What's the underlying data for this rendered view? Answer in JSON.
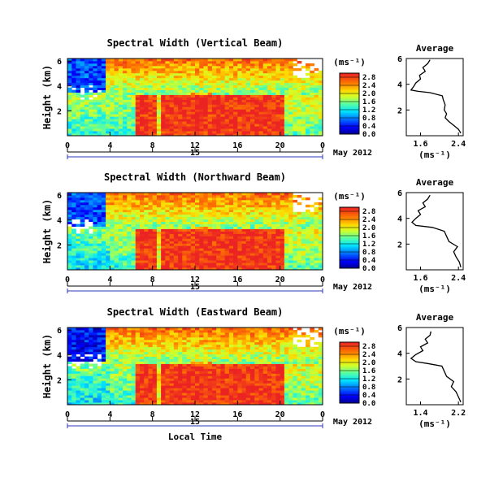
{
  "chart_data": [
    {
      "type": "heatmap",
      "title": "Spectral Width (Vertical Beam)",
      "ylabel": "Height (km)",
      "ylim": [
        0,
        6.2
      ],
      "yticks": [
        "2",
        "4",
        "6"
      ],
      "xlim": [
        0,
        24
      ],
      "xticks": [
        "0",
        "4",
        "8",
        "12",
        "16",
        "20",
        "0"
      ],
      "date_tick": "15",
      "date_label": "May 2012",
      "colorbar": {
        "unit": "(ms⁻¹)",
        "ticks": [
          "0.0",
          "0.4",
          "0.8",
          "1.2",
          "1.6",
          "2.0",
          "2.4",
          "2.8"
        ],
        "range": [
          0,
          3.0
        ]
      },
      "average": {
        "title": "Average",
        "xlabel": "(ms⁻¹)",
        "xticks": [
          "1.6",
          "2.4"
        ],
        "xlim": [
          1.3,
          2.5
        ],
        "yticks": [
          "2",
          "4",
          "6"
        ],
        "ylim": [
          0,
          6
        ],
        "profile": [
          [
            2.45,
            0.2
          ],
          [
            2.4,
            0.5
          ],
          [
            2.3,
            0.8
          ],
          [
            2.2,
            1.1
          ],
          [
            2.12,
            1.4
          ],
          [
            2.15,
            1.7
          ],
          [
            2.1,
            2.0
          ],
          [
            2.12,
            2.4
          ],
          [
            2.08,
            2.8
          ],
          [
            2.06,
            3.1
          ],
          [
            1.8,
            3.35
          ],
          [
            1.55,
            3.45
          ],
          [
            1.4,
            3.55
          ],
          [
            1.45,
            3.8
          ],
          [
            1.5,
            4.1
          ],
          [
            1.6,
            4.4
          ],
          [
            1.58,
            4.7
          ],
          [
            1.7,
            5.0
          ],
          [
            1.65,
            5.3
          ],
          [
            1.75,
            5.6
          ],
          [
            1.8,
            5.9
          ]
        ]
      }
    },
    {
      "type": "heatmap",
      "title": "Spectral Width (Northward Beam)",
      "ylabel": "Height (km)",
      "ylim": [
        0,
        6.2
      ],
      "yticks": [
        "2",
        "4",
        "6"
      ],
      "xlim": [
        0,
        24
      ],
      "xticks": [
        "0",
        "4",
        "8",
        "12",
        "16",
        "20",
        "0"
      ],
      "date_tick": "15",
      "date_label": "May 2012",
      "colorbar": {
        "unit": "(ms⁻¹)",
        "ticks": [
          "0.0",
          "0.4",
          "0.8",
          "1.2",
          "1.6",
          "2.0",
          "2.4",
          "2.8"
        ],
        "range": [
          0,
          3.0
        ]
      },
      "average": {
        "title": "Average",
        "xlabel": "(ms⁻¹)",
        "xticks": [
          "1.6",
          "2.4"
        ],
        "xlim": [
          1.3,
          2.5
        ],
        "yticks": [
          "2",
          "4",
          "6"
        ],
        "ylim": [
          0,
          6
        ],
        "profile": [
          [
            2.45,
            0.2
          ],
          [
            2.42,
            0.6
          ],
          [
            2.35,
            1.0
          ],
          [
            2.3,
            1.4
          ],
          [
            2.38,
            1.8
          ],
          [
            2.2,
            2.2
          ],
          [
            2.15,
            2.6
          ],
          [
            2.1,
            3.0
          ],
          [
            1.85,
            3.3
          ],
          [
            1.5,
            3.45
          ],
          [
            1.42,
            3.7
          ],
          [
            1.5,
            4.0
          ],
          [
            1.6,
            4.3
          ],
          [
            1.55,
            4.6
          ],
          [
            1.7,
            4.9
          ],
          [
            1.65,
            5.2
          ],
          [
            1.75,
            5.5
          ],
          [
            1.8,
            5.8
          ]
        ]
      }
    },
    {
      "type": "heatmap",
      "title": "Spectral Width (Eastward Beam)",
      "ylabel": "Height (km)",
      "ylim": [
        0,
        6.2
      ],
      "yticks": [
        "2",
        "4",
        "6"
      ],
      "xlim": [
        0,
        24
      ],
      "xticks": [
        "0",
        "4",
        "8",
        "12",
        "16",
        "20",
        "0"
      ],
      "date_tick": "15",
      "date_label": "May 2012",
      "xlabel": "Local Time",
      "colorbar": {
        "unit": "(ms⁻¹)",
        "ticks": [
          "0.0",
          "0.4",
          "0.8",
          "1.2",
          "1.6",
          "2.0",
          "2.4",
          "2.8"
        ],
        "range": [
          0,
          3.0
        ]
      },
      "average": {
        "title": "Average",
        "xlabel": "(ms⁻¹)",
        "xticks": [
          "1.4",
          "2.2"
        ],
        "xlim": [
          1.1,
          2.3
        ],
        "yticks": [
          "2",
          "4",
          "6"
        ],
        "ylim": [
          0,
          6
        ],
        "profile": [
          [
            2.25,
            0.2
          ],
          [
            2.2,
            0.6
          ],
          [
            2.15,
            1.0
          ],
          [
            2.05,
            1.4
          ],
          [
            2.1,
            1.8
          ],
          [
            1.95,
            2.2
          ],
          [
            1.9,
            2.6
          ],
          [
            1.85,
            3.0
          ],
          [
            1.55,
            3.2
          ],
          [
            1.3,
            3.35
          ],
          [
            1.2,
            3.6
          ],
          [
            1.3,
            3.9
          ],
          [
            1.45,
            4.2
          ],
          [
            1.4,
            4.5
          ],
          [
            1.55,
            4.8
          ],
          [
            1.5,
            5.1
          ],
          [
            1.6,
            5.4
          ],
          [
            1.62,
            5.7
          ]
        ]
      }
    }
  ]
}
